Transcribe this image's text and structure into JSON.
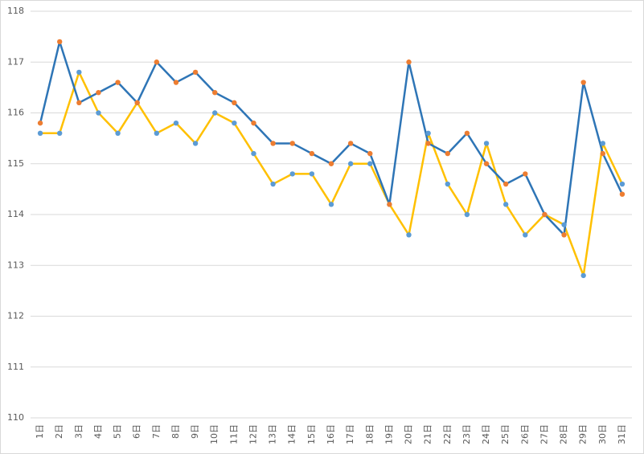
{
  "chart_data": {
    "type": "line",
    "categories": [
      "1日",
      "2日",
      "3日",
      "4日",
      "5日",
      "6日",
      "7日",
      "8日",
      "9日",
      "10日",
      "11日",
      "12日",
      "13日",
      "14日",
      "15日",
      "16日",
      "17日",
      "18日",
      "19日",
      "20日",
      "21日",
      "22日",
      "23日",
      "24日",
      "25日",
      "26日",
      "27日",
      "28日",
      "29日",
      "30日",
      "31日"
    ],
    "series": [
      {
        "color": "#ffc000",
        "marker_color": "#5b9bd5",
        "values": [
          115.6,
          115.6,
          116.8,
          116.0,
          115.6,
          116.2,
          115.6,
          115.8,
          115.4,
          116.0,
          115.8,
          115.2,
          114.6,
          114.8,
          114.8,
          114.2,
          115.0,
          115.0,
          114.2,
          113.6,
          115.6,
          114.6,
          114.0,
          115.4,
          114.2,
          113.6,
          114.0,
          113.8,
          112.8,
          115.4,
          114.6
        ]
      },
      {
        "color": "#2e75b6",
        "marker_color": "#ed7d31",
        "values": [
          115.8,
          117.4,
          116.2,
          116.4,
          116.6,
          116.2,
          117.0,
          116.6,
          116.8,
          116.4,
          116.2,
          115.8,
          115.4,
          115.4,
          115.2,
          115.0,
          115.4,
          115.2,
          114.2,
          117.0,
          115.4,
          115.2,
          115.6,
          115.0,
          114.6,
          114.8,
          114.0,
          113.6,
          116.6,
          115.2,
          114.4
        ]
      }
    ],
    "ylim": [
      110,
      118
    ],
    "yticks": [
      110,
      111,
      112,
      113,
      114,
      115,
      116,
      117,
      118
    ],
    "grid": true
  }
}
